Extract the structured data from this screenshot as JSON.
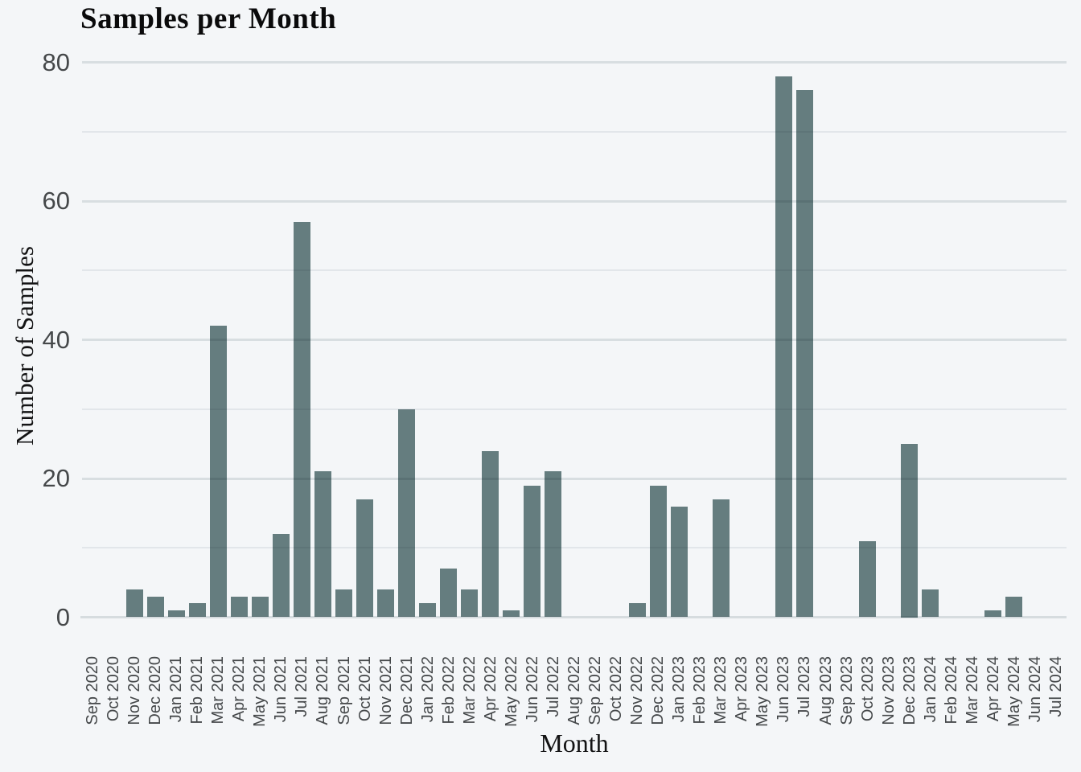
{
  "chart_title": "Samples per Month",
  "chart_data": {
    "type": "bar",
    "title": "Samples per Month",
    "xlabel": "Month",
    "ylabel": "Number of Samples",
    "ylim": [
      0,
      82
    ],
    "yticks": [
      0,
      20,
      40,
      60,
      80
    ],
    "minor_gridlines": [
      10,
      30,
      50,
      70
    ],
    "grid": true,
    "legend": "none",
    "categories": [
      "Sep 2020",
      "Oct 2020",
      "Nov 2020",
      "Dec 2020",
      "Jan 2021",
      "Feb 2021",
      "Mar 2021",
      "Apr 2021",
      "May 2021",
      "Jun 2021",
      "Jul 2021",
      "Aug 2021",
      "Sep 2021",
      "Oct 2021",
      "Nov 2021",
      "Dec 2021",
      "Jan 2022",
      "Feb 2022",
      "Mar 2022",
      "Apr 2022",
      "May 2022",
      "Jun 2022",
      "Jul 2022",
      "Aug 2022",
      "Sep 2022",
      "Oct 2022",
      "Nov 2022",
      "Dec 2022",
      "Jan 2023",
      "Feb 2023",
      "Mar 2023",
      "Apr 2023",
      "May 2023",
      "Jun 2023",
      "Jul 2023",
      "Aug 2023",
      "Sep 2023",
      "Oct 2023",
      "Nov 2023",
      "Dec 2023",
      "Jan 2024",
      "Feb 2024",
      "Mar 2024",
      "Apr 2024",
      "May 2024",
      "Jun 2024",
      "Jul 2024"
    ],
    "values": [
      0,
      0,
      4,
      3,
      1,
      2,
      42,
      3,
      3,
      12,
      57,
      21,
      4,
      17,
      4,
      30,
      2,
      7,
      4,
      24,
      1,
      19,
      21,
      0,
      0,
      0,
      2,
      19,
      16,
      0,
      17,
      0,
      0,
      78,
      76,
      0,
      0,
      11,
      0,
      25,
      4,
      0,
      0,
      1,
      3,
      0,
      0
    ]
  },
  "colors": {
    "background": "#f4f6f8",
    "bar": "#657d7f",
    "grid_major": "#e2e6e8",
    "grid_minor": "#edeff1",
    "tick_text": "#45484a",
    "title_text": "#0a0a0b"
  }
}
